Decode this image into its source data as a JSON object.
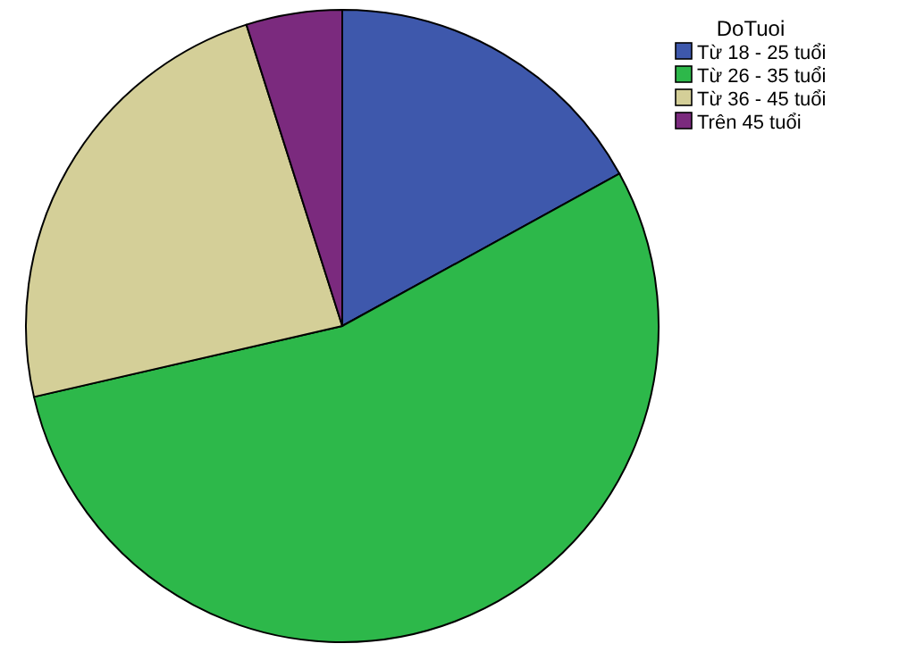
{
  "chart_data": {
    "type": "pie",
    "legend_title": "DoTuoi",
    "legend": "top right",
    "categories": [
      "Từ 18 - 25 tuổi",
      "Từ 26 - 35 tuổi",
      "Từ 36 - 45 tuổi",
      "Trên 45 tuổi"
    ],
    "values": [
      17,
      54.4,
      23.7,
      4.9
    ],
    "colors": [
      "#3e58ac",
      "#2db84a",
      "#d4cf98",
      "#7b2a7e"
    ]
  }
}
